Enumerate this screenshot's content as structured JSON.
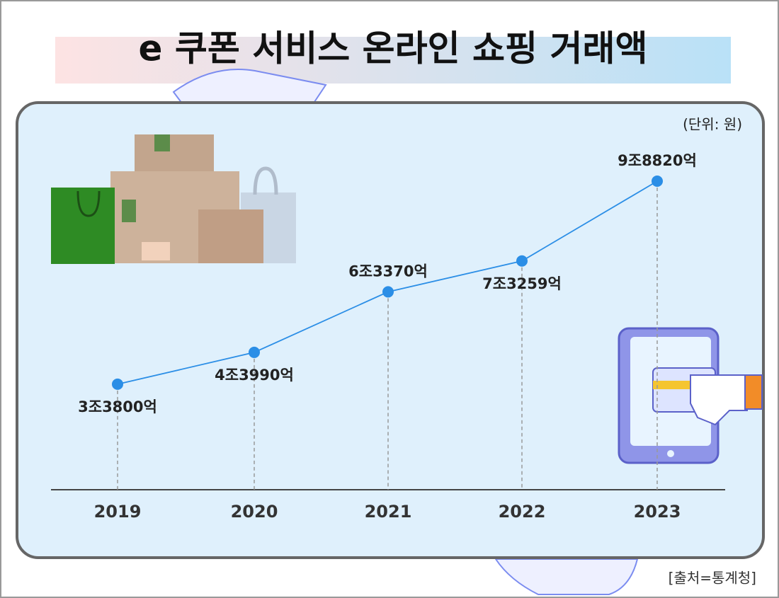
{
  "chart_data": {
    "type": "line",
    "title": "e 쿠폰 서비스 온라인 쇼핑 거래액",
    "unit_note": "(단위: 원)",
    "source": "[출처=통계청]",
    "categories": [
      "2019",
      "2020",
      "2021",
      "2022",
      "2023"
    ],
    "series": [
      {
        "name": "온라인 쇼핑 거래액",
        "color": "#2b8ee6",
        "values": [
          3380000000000,
          4399000000000,
          6337000000000,
          7325900000000,
          9882000000000
        ],
        "value_labels": [
          "3조3800억",
          "4조3990억",
          "6조3370억",
          "7조3259억",
          "9조8820억"
        ]
      }
    ]
  }
}
